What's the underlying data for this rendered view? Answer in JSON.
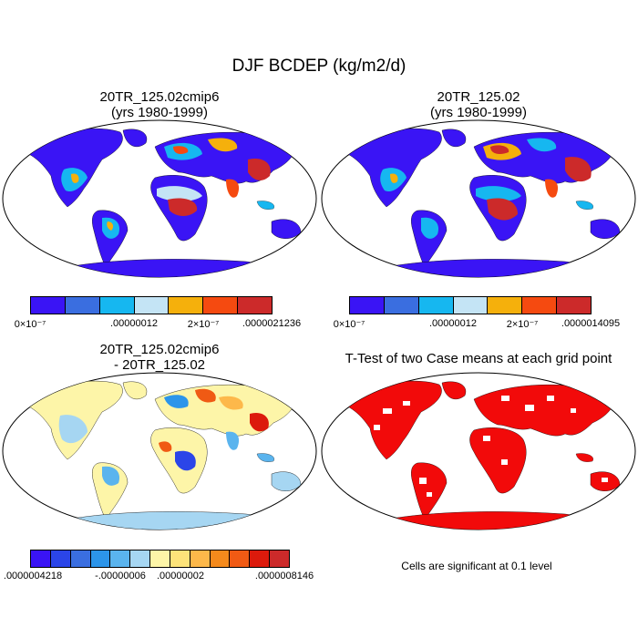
{
  "title": "DJF BCDEP (kg/m2/d)",
  "panels": {
    "case1": {
      "title_line1": "20TR_125.02cmip6",
      "title_line2": "(yrs 1980-1999)"
    },
    "case2": {
      "title_line1": "20TR_125.02",
      "title_line2": "(yrs 1980-1999)"
    },
    "diff": {
      "title_line1": "20TR_125.02cmip6",
      "title_line2": "- 20TR_125.02"
    },
    "ttest": {
      "title": "T-Test of two Case means at each grid point",
      "note": "Cells are significant at 0.1 level"
    }
  },
  "colorbars": {
    "case1": {
      "colors": [
        "#3a14f5",
        "#3a6ee0",
        "#16b7f0",
        "#c4e4f5",
        "#f5b00c",
        "#f54a10",
        "#cc2a2a"
      ],
      "labels": [
        "0×10⁻⁷",
        ".00000012",
        "2×10⁻⁷",
        ".0000021236"
      ]
    },
    "case2": {
      "colors": [
        "#3a14f5",
        "#3a6ee0",
        "#16b7f0",
        "#c4e4f5",
        "#f5b00c",
        "#f54a10",
        "#cc2a2a"
      ],
      "labels": [
        "0×10⁻⁷",
        ".00000012",
        "2×10⁻⁷",
        ".0000014095"
      ]
    },
    "diff": {
      "colors": [
        "#3a14f5",
        "#2b45e8",
        "#3a6ee0",
        "#2c95ea",
        "#5ab4ee",
        "#a6d6f2",
        "#fdf5a8",
        "#fde37a",
        "#fdb84a",
        "#f58a1c",
        "#f05a14",
        "#dc1a0c",
        "#cc2a2a"
      ],
      "labels": [
        ".0000004218",
        "-.00000006",
        ".00000002",
        ".0000008146"
      ]
    }
  }
}
